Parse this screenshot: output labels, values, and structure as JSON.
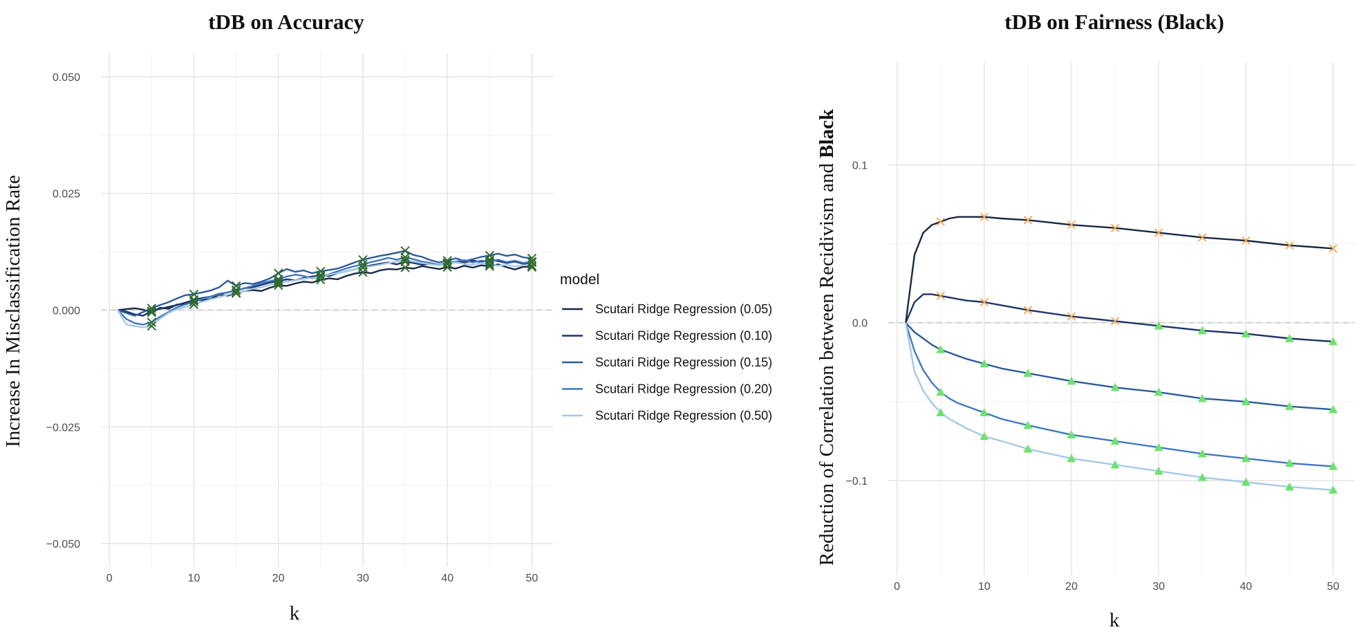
{
  "chart_data": [
    {
      "type": "line",
      "title": "tDB on Accuracy",
      "xlabel": "k",
      "ylabel": "Increase In Misclassification Rate",
      "xlim": [
        -1,
        52.5
      ],
      "ylim": [
        -0.055,
        0.055
      ],
      "xticks": [
        0,
        10,
        20,
        30,
        40,
        50
      ],
      "yticks": [
        -0.05,
        -0.025,
        0.0,
        0.025,
        0.05
      ],
      "ytick_labels": [
        "−0.050",
        "−0.025",
        "0.000",
        "0.025",
        "0.050"
      ],
      "xtick_labels": [
        "0",
        "10",
        "20",
        "30",
        "40",
        "50"
      ],
      "hline": 0,
      "marker": "x",
      "marker_color": "#2f6b2f",
      "marker_x": [
        5,
        10,
        15,
        20,
        25,
        30,
        35,
        40,
        45,
        50
      ],
      "x_start": 1,
      "series": [
        {
          "name": "Scutari Ridge Regression (0.05)",
          "color": "#192844",
          "values": [
            0.0,
            0.0002,
            0.0004,
            0.0001,
            -0.0005,
            0.0005,
            0.0003,
            0.0012,
            0.0013,
            0.0022,
            0.0021,
            0.0024,
            0.0033,
            0.0031,
            0.0036,
            0.0041,
            0.0043,
            0.0041,
            0.0048,
            0.0053,
            0.0052,
            0.0057,
            0.0061,
            0.0059,
            0.0065,
            0.0068,
            0.0066,
            0.0073,
            0.0078,
            0.0081,
            0.0079,
            0.0085,
            0.0088,
            0.0087,
            0.0091,
            0.0089,
            0.0094,
            0.0091,
            0.0088,
            0.0092,
            0.0089,
            0.0095,
            0.0091,
            0.0096,
            0.0094,
            0.0098,
            0.0092,
            0.0087,
            0.0093,
            0.0092
          ]
        },
        {
          "name": "Scutari Ridge Regression (0.10)",
          "color": "#1d3466",
          "values": [
            0.0,
            -0.0003,
            -0.0009,
            -0.0012,
            -0.0002,
            0.0003,
            0.0007,
            0.0011,
            0.0016,
            0.0022,
            0.0026,
            0.0029,
            0.0035,
            0.0038,
            0.0042,
            0.0047,
            0.0049,
            0.0054,
            0.0059,
            0.0062,
            0.0066,
            0.0064,
            0.0069,
            0.0072,
            0.0075,
            0.0073,
            0.0079,
            0.0083,
            0.0087,
            0.0092,
            0.0096,
            0.0099,
            0.0102,
            0.0098,
            0.0104,
            0.0101,
            0.0097,
            0.0099,
            0.0096,
            0.0101,
            0.0104,
            0.0102,
            0.0106,
            0.0103,
            0.0108,
            0.0105,
            0.0101,
            0.0104,
            0.0099,
            0.0102
          ]
        },
        {
          "name": "Scutari Ridge Regression (0.15)",
          "color": "#2d5a9c",
          "values": [
            0.0,
            -0.0006,
            -0.0012,
            -0.0004,
            0.0004,
            0.0011,
            0.0017,
            0.0025,
            0.0032,
            0.0034,
            0.0038,
            0.0042,
            0.0049,
            0.0063,
            0.0052,
            0.0058,
            0.0056,
            0.0061,
            0.0068,
            0.0079,
            0.0088,
            0.0082,
            0.0085,
            0.0079,
            0.0083,
            0.0086,
            0.0089,
            0.0095,
            0.0102,
            0.0108,
            0.0112,
            0.0116,
            0.0119,
            0.0123,
            0.0127,
            0.0118,
            0.0114,
            0.0107,
            0.0102,
            0.0106,
            0.0111,
            0.0105,
            0.0109,
            0.0114,
            0.0117,
            0.0121,
            0.0116,
            0.0119,
            0.0113,
            0.0111
          ]
        },
        {
          "name": "Scutari Ridge Regression (0.20)",
          "color": "#3f79c0",
          "values": [
            0.0,
            -0.0019,
            -0.0028,
            -0.0031,
            -0.0026,
            -0.0014,
            -0.0004,
            0.0006,
            0.0012,
            0.0018,
            0.0024,
            0.0029,
            0.0034,
            0.0038,
            0.0043,
            0.0047,
            0.0052,
            0.0058,
            0.0062,
            0.0066,
            0.0072,
            0.0076,
            0.0073,
            0.0068,
            0.0072,
            0.0077,
            0.0083,
            0.0089,
            0.0094,
            0.0098,
            0.0103,
            0.0107,
            0.0112,
            0.0108,
            0.0113,
            0.0109,
            0.0104,
            0.0101,
            0.0097,
            0.0101,
            0.0104,
            0.0107,
            0.0102,
            0.0106,
            0.0104,
            0.0108,
            0.0103,
            0.0106,
            0.0101,
            0.0104
          ]
        },
        {
          "name": "Scutari Ridge Regression (0.50)",
          "color": "#a5c9e6",
          "values": [
            0.0,
            -0.0031,
            -0.0034,
            -0.0037,
            -0.0034,
            -0.0018,
            -0.0006,
            0.0002,
            0.0007,
            0.0012,
            0.0018,
            0.0023,
            0.0028,
            0.0033,
            0.0037,
            0.0041,
            0.0046,
            0.0049,
            0.0054,
            0.0058,
            0.0061,
            0.0064,
            0.0067,
            0.0069,
            0.0072,
            0.0076,
            0.0079,
            0.0083,
            0.0087,
            0.0091,
            0.0094,
            0.0097,
            0.0101,
            0.0104,
            0.0107,
            0.0104,
            0.0101,
            0.0098,
            0.0096,
            0.0099,
            0.0102,
            0.0099,
            0.0097,
            0.0101,
            0.0098,
            0.0095,
            0.0097,
            0.0094,
            0.0096,
            0.0095
          ]
        }
      ],
      "legend": {
        "title": "model",
        "position": "right"
      }
    },
    {
      "type": "line",
      "title": "tDB on Fairness (Black)",
      "xlabel": "k",
      "ylabel_prefix": "Reduction of Correlation between Recidivism and ",
      "ylabel_bold": "Black",
      "xlim": [
        -1,
        52.5
      ],
      "ylim": [
        -0.16,
        0.165
      ],
      "xticks": [
        0,
        10,
        20,
        30,
        40,
        50
      ],
      "xtick_labels": [
        "0",
        "10",
        "20",
        "30",
        "40",
        "50"
      ],
      "yticks": [
        -0.1,
        0.0,
        0.1
      ],
      "ytick_labels": [
        "−0.1",
        "0.0",
        "0.1"
      ],
      "hline": 0,
      "x": [
        1,
        2,
        3,
        4,
        5,
        6,
        7,
        8,
        10,
        12,
        15,
        20,
        25,
        30,
        35,
        40,
        45,
        50
      ],
      "marker_x": [
        5,
        10,
        15,
        20,
        25,
        30,
        35,
        40,
        45,
        50
      ],
      "marker_rule": "orange x when value > 0, green triangle when value < 0",
      "marker_pos_color": "#f0a64b",
      "marker_neg_color": "#6de36d",
      "series": [
        {
          "name": "Scutari Ridge Regression (0.05)",
          "color": "#192844",
          "values": [
            0.0,
            0.043,
            0.057,
            0.062,
            0.064,
            0.066,
            0.067,
            0.067,
            0.067,
            0.066,
            0.065,
            0.062,
            0.06,
            0.057,
            0.054,
            0.052,
            0.049,
            0.047
          ]
        },
        {
          "name": "Scutari Ridge Regression (0.10)",
          "color": "#1d3466",
          "values": [
            0.0,
            0.013,
            0.018,
            0.018,
            0.017,
            0.016,
            0.015,
            0.014,
            0.013,
            0.011,
            0.008,
            0.004,
            0.001,
            -0.002,
            -0.005,
            -0.007,
            -0.01,
            -0.012
          ]
        },
        {
          "name": "Scutari Ridge Regression (0.15)",
          "color": "#2d5a9c",
          "values": [
            0.0,
            -0.006,
            -0.01,
            -0.014,
            -0.017,
            -0.019,
            -0.021,
            -0.023,
            -0.026,
            -0.029,
            -0.032,
            -0.037,
            -0.041,
            -0.044,
            -0.048,
            -0.05,
            -0.053,
            -0.055
          ]
        },
        {
          "name": "Scutari Ridge Regression (0.20)",
          "color": "#3f79c0",
          "values": [
            0.0,
            -0.018,
            -0.03,
            -0.038,
            -0.044,
            -0.048,
            -0.051,
            -0.053,
            -0.057,
            -0.061,
            -0.065,
            -0.071,
            -0.075,
            -0.079,
            -0.083,
            -0.086,
            -0.089,
            -0.091
          ]
        },
        {
          "name": "Scutari Ridge Regression (0.50)",
          "color": "#a5c9e6",
          "values": [
            0.0,
            -0.031,
            -0.043,
            -0.051,
            -0.057,
            -0.061,
            -0.064,
            -0.067,
            -0.072,
            -0.075,
            -0.08,
            -0.086,
            -0.09,
            -0.094,
            -0.098,
            -0.101,
            -0.104,
            -0.106
          ]
        }
      ]
    }
  ]
}
